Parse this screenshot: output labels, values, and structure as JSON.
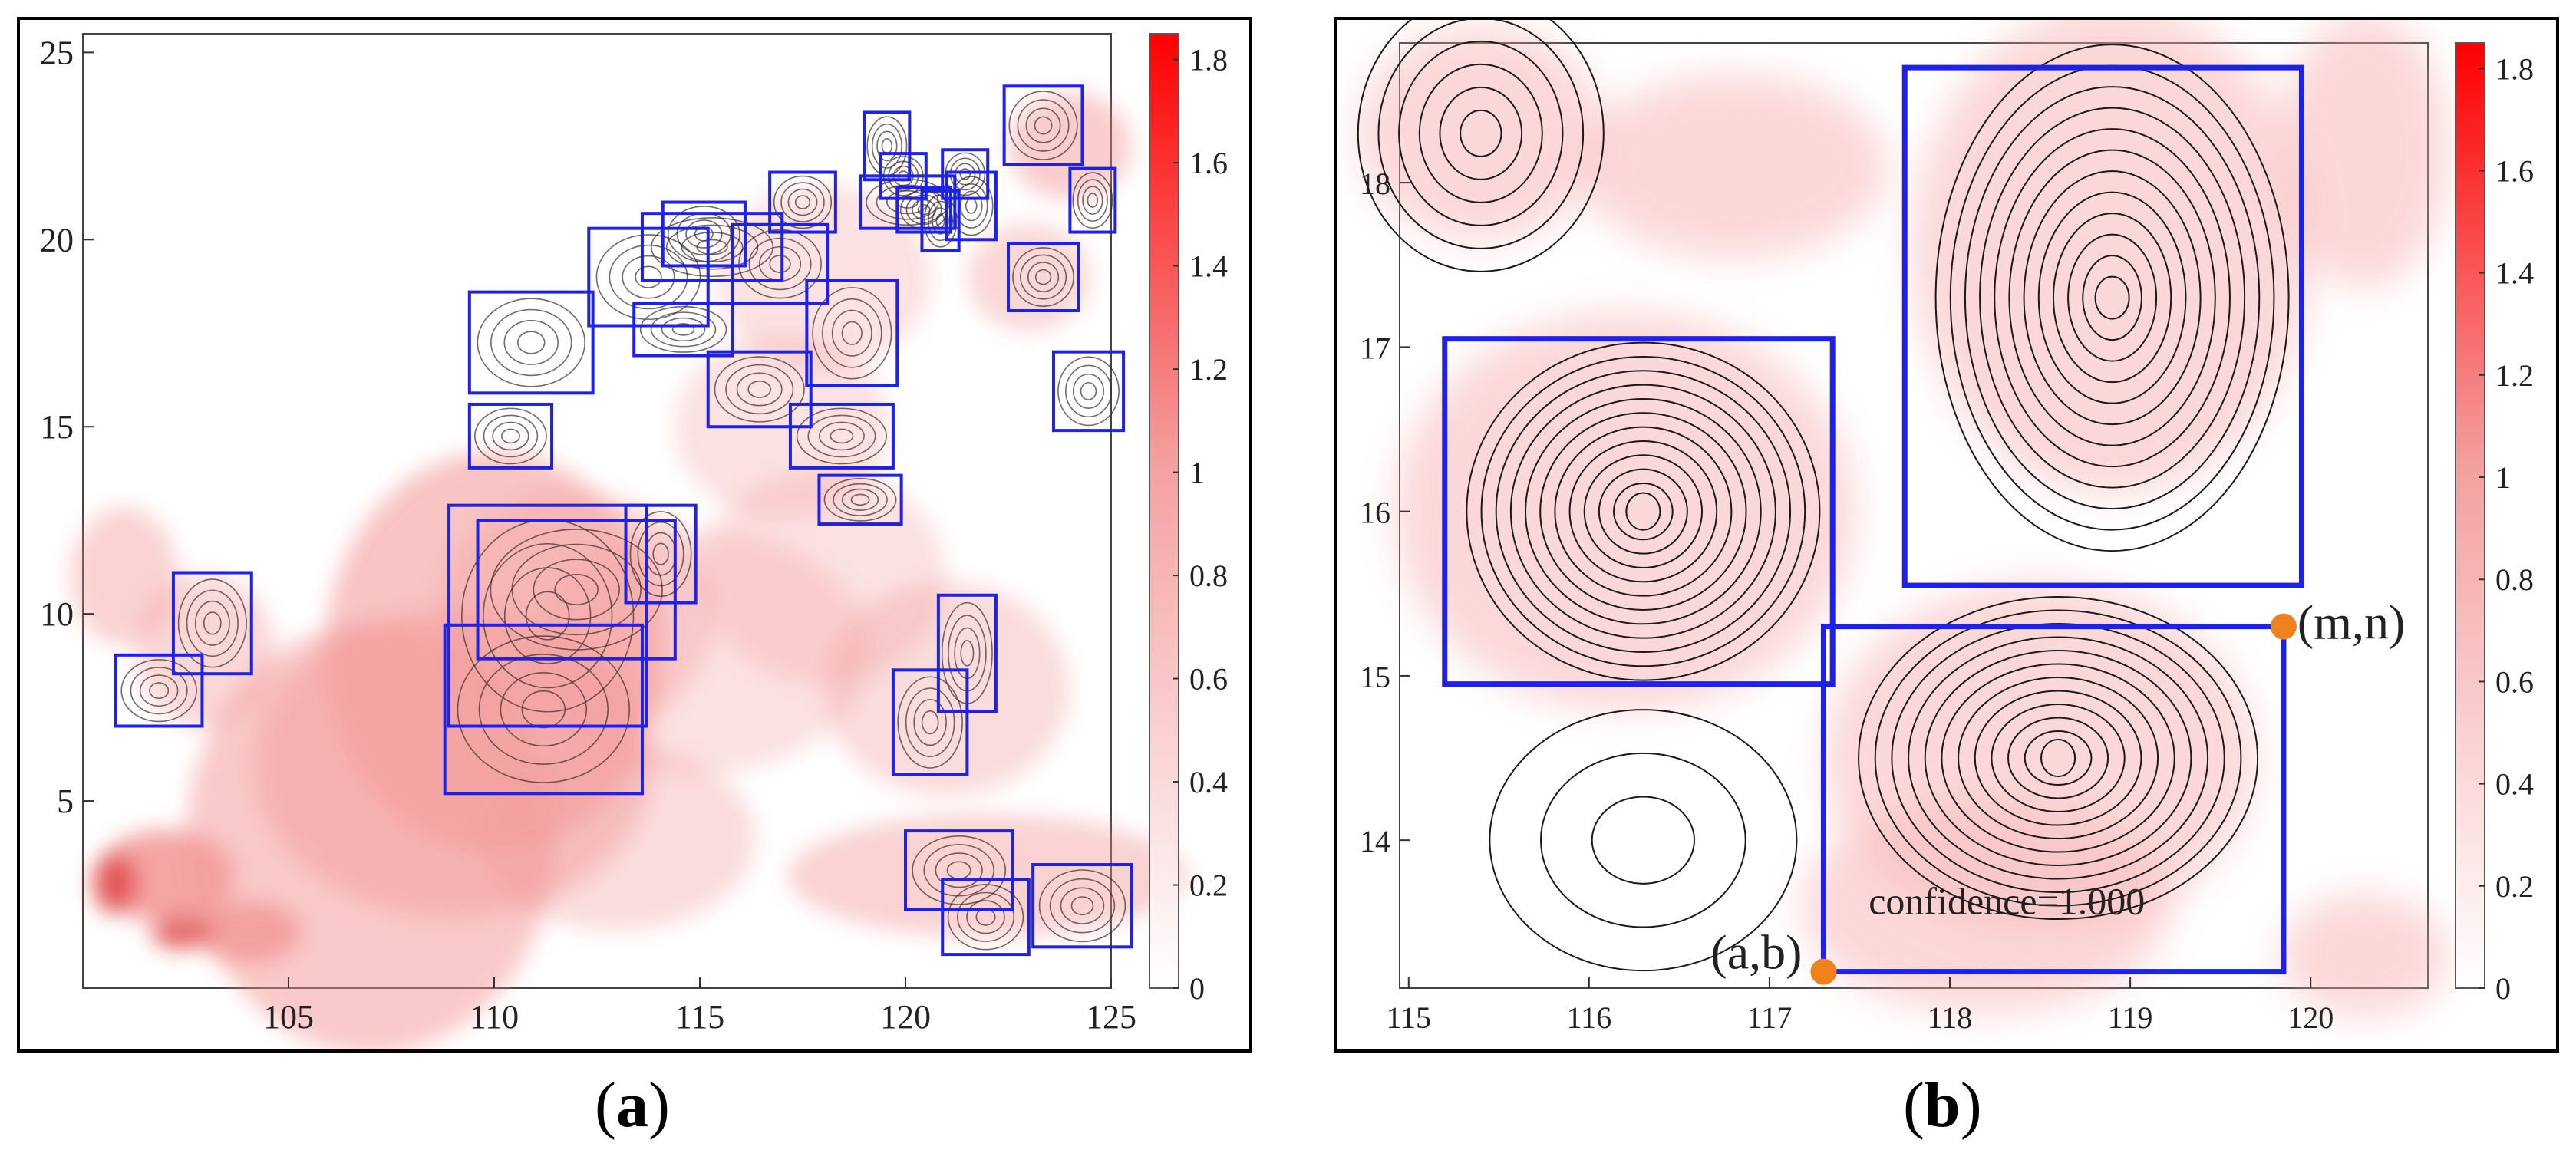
{
  "panels": [
    {
      "id": "a",
      "caption_letter": "a",
      "x_ticks": [
        105,
        110,
        115,
        120,
        125
      ],
      "y_ticks": [
        5,
        10,
        15,
        20,
        25
      ],
      "xlim": [
        100,
        125
      ],
      "ylim": [
        0,
        25.5
      ],
      "colorbar": {
        "ticks": [
          "0",
          "0.2",
          "0.4",
          "0.6",
          "0.8",
          "1",
          "1.2",
          "1.4",
          "1.6",
          "1.8"
        ],
        "range": [
          0,
          1.85
        ],
        "low_color": "#ffffff",
        "high_color": "#ff0000"
      },
      "boxes": [
        [
          100.8,
          7.0,
          102.9,
          8.9
        ],
        [
          102.2,
          8.4,
          104.1,
          11.1
        ],
        [
          108.9,
          7.0,
          113.7,
          12.9
        ],
        [
          109.6,
          8.8,
          114.4,
          12.5
        ],
        [
          108.8,
          5.2,
          113.6,
          9.7
        ],
        [
          113.2,
          10.3,
          114.9,
          12.9
        ],
        [
          109.4,
          15.9,
          112.4,
          18.6
        ],
        [
          109.4,
          13.9,
          111.4,
          15.6
        ],
        [
          112.3,
          17.7,
          115.2,
          20.3
        ],
        [
          113.6,
          18.9,
          117.0,
          20.7
        ],
        [
          114.1,
          19.3,
          116.1,
          21.0
        ],
        [
          113.4,
          16.9,
          115.8,
          18.3
        ],
        [
          115.8,
          18.3,
          118.1,
          20.4
        ],
        [
          116.7,
          20.2,
          118.3,
          21.8
        ],
        [
          115.2,
          15.0,
          117.7,
          17.0
        ],
        [
          117.6,
          16.1,
          119.8,
          18.9
        ],
        [
          117.2,
          13.9,
          119.7,
          15.6
        ],
        [
          117.9,
          12.4,
          119.9,
          13.7
        ],
        [
          118.9,
          20.3,
          121.2,
          21.7
        ],
        [
          119.0,
          21.6,
          120.1,
          23.4
        ],
        [
          119.4,
          21.1,
          120.5,
          22.3
        ],
        [
          119.8,
          20.2,
          121.1,
          21.4
        ],
        [
          120.4,
          19.7,
          121.3,
          21.3
        ],
        [
          121.0,
          20.0,
          122.2,
          21.8
        ],
        [
          120.9,
          21.1,
          122.0,
          22.4
        ],
        [
          122.4,
          22.0,
          124.3,
          24.1
        ],
        [
          122.5,
          18.1,
          124.2,
          19.9
        ],
        [
          124.0,
          20.2,
          125.1,
          21.9
        ],
        [
          123.6,
          14.9,
          125.3,
          17.0
        ],
        [
          120.8,
          7.4,
          122.2,
          10.5
        ],
        [
          119.7,
          5.7,
          121.5,
          8.5
        ],
        [
          120.0,
          2.1,
          122.6,
          4.2
        ],
        [
          120.9,
          0.9,
          123.0,
          2.9
        ],
        [
          123.1,
          1.1,
          125.5,
          3.3
        ]
      ]
    },
    {
      "id": "b",
      "caption_letter": "b",
      "x_ticks": [
        115,
        116,
        117,
        118,
        119,
        120
      ],
      "y_ticks": [
        14,
        15,
        16,
        17,
        18
      ],
      "xlim": [
        114.95,
        120.65
      ],
      "ylim": [
        13.1,
        18.85
      ],
      "colorbar": {
        "ticks": [
          "0",
          "0.2",
          "0.4",
          "0.6",
          "0.8",
          "1",
          "1.2",
          "1.4",
          "1.6",
          "1.8"
        ],
        "range": [
          0,
          1.85
        ],
        "low_color": "#ffffff",
        "high_color": "#ff0000"
      },
      "boxes": [
        [
          115.2,
          14.95,
          117.35,
          17.05
        ],
        [
          117.75,
          15.55,
          119.95,
          18.7
        ],
        [
          117.3,
          13.2,
          119.85,
          15.3
        ]
      ],
      "point_labels": [
        "(a,b)",
        "(m,n)"
      ],
      "points": [
        [
          117.3,
          13.2
        ],
        [
          119.85,
          15.3
        ]
      ],
      "annotation": "confidence=1.000"
    }
  ],
  "colors": {
    "box": "#1e22e6",
    "marker": "#f0821e",
    "contour": "#1a1a1a",
    "shade": "#f7b7b7"
  }
}
